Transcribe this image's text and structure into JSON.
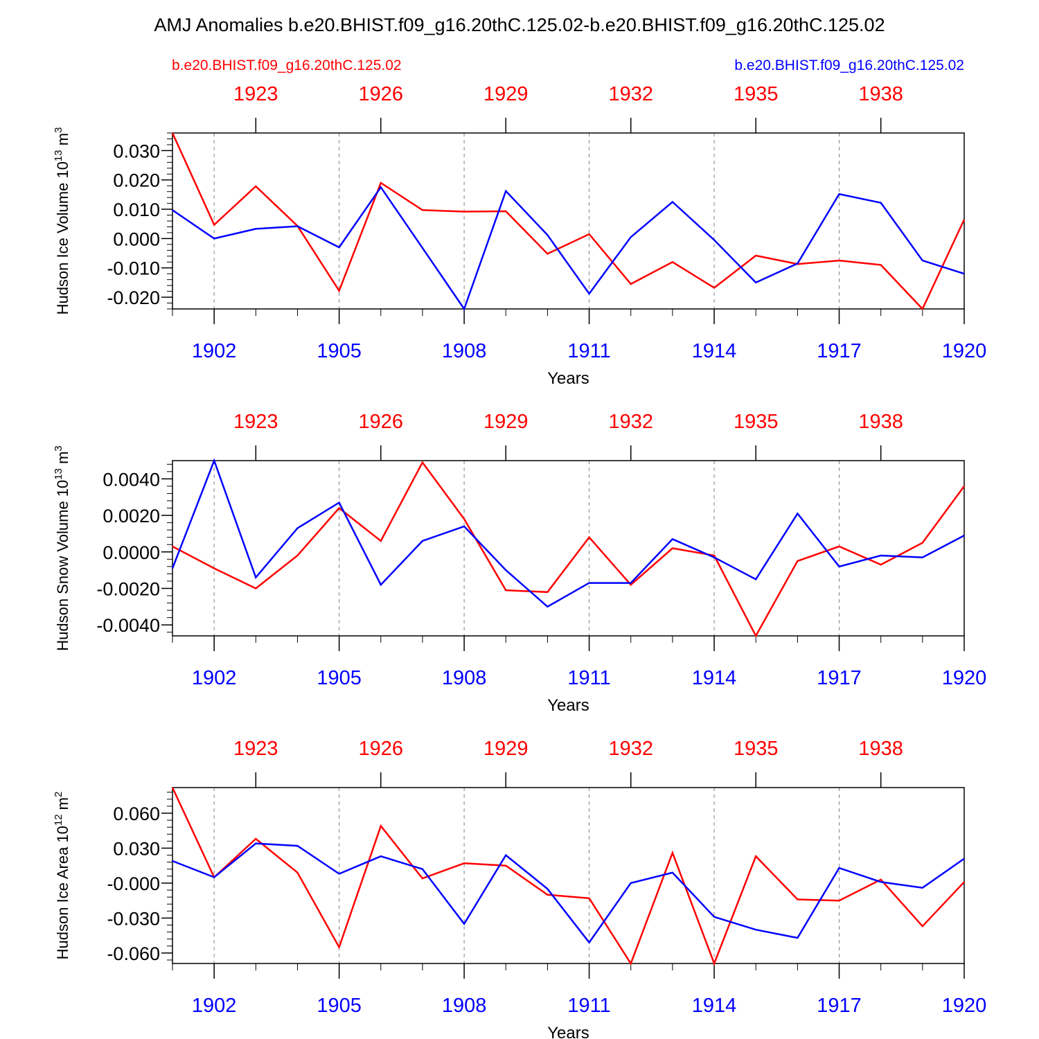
{
  "title": "AMJ Anomalies b.e20.BHIST.f09_g16.20thC.125.02-b.e20.BHIST.f09_g16.20thC.125.02",
  "legend": {
    "left_label": "b.e20.BHIST.f09_g16.20thC.125.02",
    "right_label": "b.e20.BHIST.f09_g16.20thC.125.02"
  },
  "colors": {
    "red": "#ff0000",
    "blue": "#0000ff",
    "axis": "#000000",
    "grid": "#808080"
  },
  "chart_data": [
    {
      "type": "line",
      "ylabel": "Hudson Ice Volume 10",
      "ylabel_exp": "13",
      "ylabel_unit": " m",
      "ylabel_unit_exp": "3",
      "xlabel": "Years",
      "ylim": [
        -0.024,
        0.036
      ],
      "yticks": [
        0.03,
        0.02,
        0.01,
        0.0,
        -0.01,
        -0.02
      ],
      "ytick_labels": [
        "0.030",
        "0.020",
        "0.010",
        "0.000",
        "-0.010",
        "-0.020"
      ],
      "x_bottom": [
        1901,
        1902,
        1903,
        1904,
        1905,
        1906,
        1907,
        1908,
        1909,
        1910,
        1911,
        1912,
        1913,
        1914,
        1915,
        1916,
        1917,
        1918,
        1919,
        1920
      ],
      "bottom_tick_labels": [
        "1902",
        "1905",
        "1908",
        "1911",
        "1914",
        "1917",
        "1920"
      ],
      "top_tick_labels": [
        "1923",
        "1926",
        "1929",
        "1932",
        "1935",
        "1938"
      ],
      "series": [
        {
          "name": "b.e20.BHIST.f09_g16.20thC.125.02 (1921-1940)",
          "color": "red",
          "values": [
            0.036,
            0.0047,
            0.0178,
            0.0043,
            -0.0178,
            0.019,
            0.0097,
            0.0092,
            0.0093,
            -0.0052,
            0.0015,
            -0.0155,
            -0.008,
            -0.0168,
            -0.0058,
            -0.0087,
            -0.0075,
            -0.009,
            -0.024,
            0.0065
          ]
        },
        {
          "name": "b.e20.BHIST.f09_g16.20thC.125.02 (1901-1920)",
          "color": "blue",
          "values": [
            0.0097,
            0.0,
            0.0033,
            0.0042,
            -0.003,
            0.0175,
            -0.0032,
            -0.024,
            0.0162,
            0.0012,
            -0.0188,
            0.0005,
            0.0125,
            -0.0005,
            -0.015,
            -0.0085,
            0.0152,
            0.0122,
            -0.0075,
            -0.012
          ]
        }
      ]
    },
    {
      "type": "line",
      "ylabel": "Hudson Snow Volume 10",
      "ylabel_exp": "13",
      "ylabel_unit": " m",
      "ylabel_unit_exp": "3",
      "xlabel": "Years",
      "ylim": [
        -0.0046,
        0.005
      ],
      "yticks": [
        0.004,
        0.002,
        0.0,
        -0.002,
        -0.004
      ],
      "ytick_labels": [
        "0.0040",
        "0.0020",
        "0.0000",
        "-0.0020",
        "-0.0040"
      ],
      "x_bottom": [
        1901,
        1902,
        1903,
        1904,
        1905,
        1906,
        1907,
        1908,
        1909,
        1910,
        1911,
        1912,
        1913,
        1914,
        1915,
        1916,
        1917,
        1918,
        1919,
        1920
      ],
      "bottom_tick_labels": [
        "1902",
        "1905",
        "1908",
        "1911",
        "1914",
        "1917",
        "1920"
      ],
      "top_tick_labels": [
        "1923",
        "1926",
        "1929",
        "1932",
        "1935",
        "1938"
      ],
      "series": [
        {
          "name": "b.e20.BHIST.f09_g16.20thC.125.02 (1921-1940)",
          "color": "red",
          "values": [
            0.0003,
            -0.0009,
            -0.002,
            -0.0002,
            0.0024,
            0.0006,
            0.0049,
            0.0018,
            -0.0021,
            -0.0022,
            0.0008,
            -0.0018,
            0.0002,
            -0.0002,
            -0.0046,
            -0.0005,
            0.0003,
            -0.0007,
            0.0005,
            0.0036
          ]
        },
        {
          "name": "b.e20.BHIST.f09_g16.20thC.125.02 (1901-1920)",
          "color": "blue",
          "values": [
            -0.0009,
            0.005,
            -0.0014,
            0.0013,
            0.0027,
            -0.0018,
            0.0006,
            0.0014,
            -0.001,
            -0.003,
            -0.0017,
            -0.0017,
            0.0007,
            -0.0003,
            -0.0015,
            0.0021,
            -0.0008,
            -0.0002,
            -0.0003,
            0.0009
          ]
        }
      ]
    },
    {
      "type": "line",
      "ylabel": "Hudson Ice Area 10",
      "ylabel_exp": "12",
      "ylabel_unit": " m",
      "ylabel_unit_exp": "2",
      "xlabel": "Years",
      "ylim": [
        -0.069,
        0.082
      ],
      "yticks": [
        0.06,
        0.03,
        0.0,
        -0.03,
        -0.06
      ],
      "ytick_labels": [
        "0.060",
        "0.030",
        "-0.000",
        "-0.030",
        "-0.060"
      ],
      "x_bottom": [
        1901,
        1902,
        1903,
        1904,
        1905,
        1906,
        1907,
        1908,
        1909,
        1910,
        1911,
        1912,
        1913,
        1914,
        1915,
        1916,
        1917,
        1918,
        1919,
        1920
      ],
      "bottom_tick_labels": [
        "1902",
        "1905",
        "1908",
        "1911",
        "1914",
        "1917",
        "1920"
      ],
      "top_tick_labels": [
        "1923",
        "1926",
        "1929",
        "1932",
        "1935",
        "1938"
      ],
      "series": [
        {
          "name": "b.e20.BHIST.f09_g16.20thC.125.02 (1921-1940)",
          "color": "red",
          "values": [
            0.082,
            0.005,
            0.038,
            0.009,
            -0.055,
            0.049,
            0.004,
            0.017,
            0.015,
            -0.01,
            -0.013,
            -0.069,
            0.026,
            -0.069,
            0.023,
            -0.014,
            -0.015,
            0.003,
            -0.037,
            0.001
          ]
        },
        {
          "name": "b.e20.BHIST.f09_g16.20thC.125.02 (1901-1920)",
          "color": "blue",
          "values": [
            0.019,
            0.005,
            0.034,
            0.032,
            0.008,
            0.023,
            0.012,
            -0.035,
            0.024,
            -0.005,
            -0.051,
            0.0,
            0.009,
            -0.029,
            -0.04,
            -0.047,
            0.013,
            0.001,
            -0.004,
            0.021
          ]
        }
      ]
    }
  ]
}
